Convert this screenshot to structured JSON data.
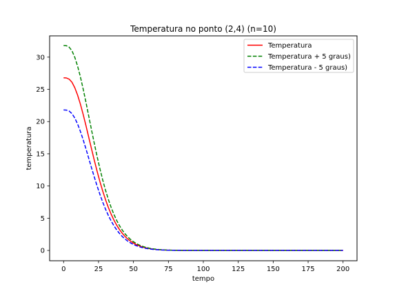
{
  "chart_data": {
    "type": "line",
    "title": "Temperatura no ponto (2,4) (n=10)",
    "xlabel": "tempo",
    "ylabel": "temperatura",
    "xlim": [
      -10,
      210
    ],
    "ylim": [
      -1.6,
      33.3
    ],
    "xticks": [
      0,
      25,
      50,
      75,
      100,
      125,
      150,
      175,
      200
    ],
    "yticks": [
      0,
      5,
      10,
      15,
      20,
      25,
      30
    ],
    "grid": false,
    "legend_position": "top-right",
    "x": [
      0,
      2,
      4,
      6,
      8,
      10,
      12,
      14,
      16,
      18,
      20,
      22,
      24,
      26,
      28,
      30,
      32,
      34,
      36,
      38,
      40,
      42,
      44,
      46,
      48,
      50,
      52,
      54,
      56,
      58,
      60,
      62,
      64,
      66,
      68,
      70,
      72,
      74,
      76,
      78,
      80,
      85,
      90,
      95,
      100,
      110,
      120,
      140,
      160,
      180,
      200
    ],
    "series": [
      {
        "name": "Temperatura",
        "color": "#ff0000",
        "dash": "solid",
        "values": [
          26.8,
          26.77,
          26.58,
          26.1,
          25.26,
          24.12,
          22.72,
          21.12,
          19.38,
          17.56,
          15.75,
          13.97,
          12.27,
          10.68,
          9.21,
          7.88,
          6.69,
          5.64,
          4.72,
          3.92,
          3.24,
          2.66,
          2.17,
          1.76,
          1.42,
          1.14,
          0.91,
          0.72,
          0.57,
          0.45,
          0.35,
          0.27,
          0.21,
          0.16,
          0.12,
          0.09,
          0.07,
          0.05,
          0.04,
          0.03,
          0.02,
          0.01,
          0.0,
          0.0,
          0.0,
          0.0,
          0.0,
          0.0,
          0.0,
          0.0,
          0.0
        ]
      },
      {
        "name": "Temperatura + 5 graus)",
        "color": "#008000",
        "dash": "dashed",
        "values": [
          31.8,
          31.77,
          31.54,
          30.98,
          29.98,
          28.62,
          26.96,
          25.06,
          23.0,
          20.84,
          18.69,
          16.58,
          14.56,
          12.67,
          10.93,
          9.35,
          7.94,
          6.69,
          5.6,
          4.65,
          3.84,
          3.16,
          2.58,
          2.09,
          1.69,
          1.35,
          1.08,
          0.85,
          0.68,
          0.53,
          0.42,
          0.32,
          0.25,
          0.19,
          0.14,
          0.11,
          0.08,
          0.06,
          0.05,
          0.03,
          0.02,
          0.01,
          0.0,
          0.0,
          0.0,
          0.0,
          0.0,
          0.0,
          0.0,
          0.0,
          0.0
        ]
      },
      {
        "name": "Temperatura - 5 graus)",
        "color": "#0000ff",
        "dash": "dashed",
        "values": [
          21.8,
          21.78,
          21.62,
          21.23,
          20.55,
          19.63,
          18.49,
          17.18,
          15.77,
          14.29,
          12.81,
          11.37,
          9.99,
          8.69,
          7.49,
          6.41,
          5.44,
          4.59,
          3.84,
          3.19,
          2.64,
          2.16,
          1.77,
          1.43,
          1.16,
          0.93,
          0.74,
          0.59,
          0.46,
          0.36,
          0.28,
          0.22,
          0.17,
          0.13,
          0.1,
          0.07,
          0.06,
          0.04,
          0.03,
          0.02,
          0.02,
          0.01,
          0.0,
          0.0,
          0.0,
          0.0,
          0.0,
          0.0,
          0.0,
          0.0,
          0.0
        ]
      }
    ]
  }
}
